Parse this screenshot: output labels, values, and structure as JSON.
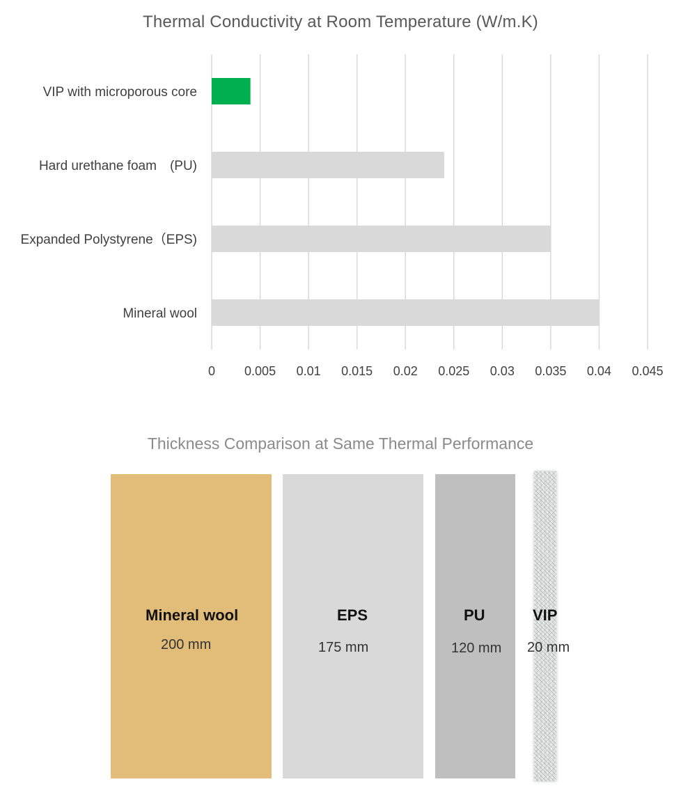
{
  "chart_data": [
    {
      "type": "bar",
      "orientation": "horizontal",
      "title": "Thermal Conductivity at Room Temperature (W/m.K)",
      "categories": [
        "VIP with microporous core",
        "Hard urethane foam　(PU)",
        "Expanded Polystyrene（EPS)",
        "Mineral wool"
      ],
      "values": [
        0.004,
        0.024,
        0.035,
        0.04
      ],
      "bar_colors": [
        "#00b050",
        "#d9d9d9",
        "#d9d9d9",
        "#d9d9d9"
      ],
      "xlim": [
        0,
        0.045
      ],
      "xticks": [
        "0",
        "0.005",
        "0.01",
        "0.015",
        "0.02",
        "0.025",
        "0.03",
        "0.035",
        "0.04",
        "0.045"
      ],
      "grid": "vertical",
      "legend": "none"
    }
  ],
  "thickness": {
    "title": "Thickness Comparison at Same Thermal Performance",
    "panels": [
      {
        "name": "Mineral wool",
        "value": "200 mm",
        "color": "#e2bd79"
      },
      {
        "name": "EPS",
        "value": "175 mm",
        "color": "#d9d9d9"
      },
      {
        "name": "PU",
        "value": "120 mm",
        "color": "#bfbfbf"
      },
      {
        "name": "VIP",
        "value": "20 mm",
        "color": "#dfe3e1"
      }
    ]
  }
}
